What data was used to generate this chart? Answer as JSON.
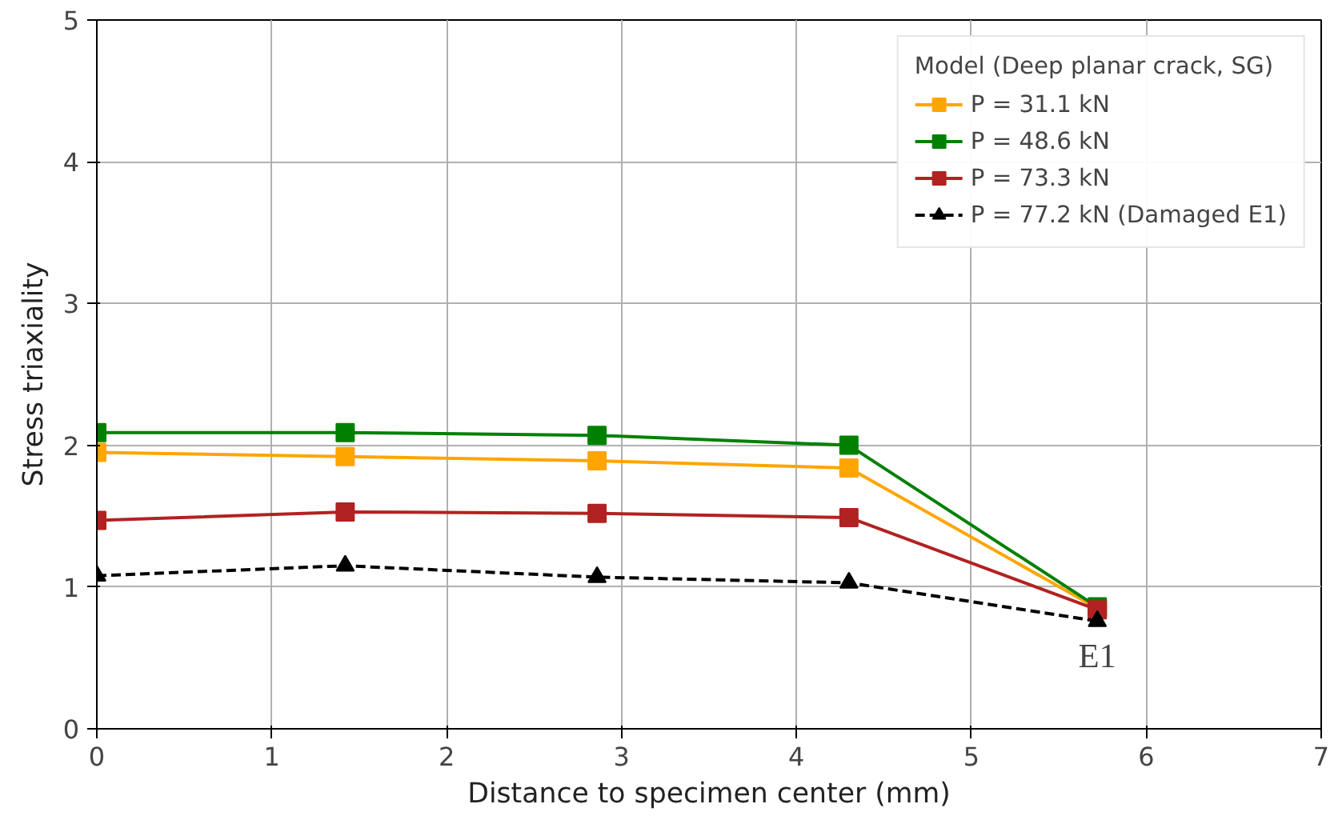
{
  "chart_data": {
    "type": "line",
    "xlabel": "Distance to specimen center (mm)",
    "ylabel": "Stress triaxiality",
    "legend_title": "Model (Deep planar crack, SG)",
    "legend": "top right",
    "grid": true,
    "x": [
      0,
      1.42,
      2.86,
      4.3,
      5.72
    ],
    "xlim": [
      0,
      7
    ],
    "xticks": [
      0,
      1,
      2,
      3,
      4,
      5,
      6,
      7
    ],
    "ylim": [
      0,
      5
    ],
    "yticks": [
      0,
      1,
      2,
      3,
      4,
      5
    ],
    "series": [
      {
        "name": "P = 31.1 kN",
        "color": "#ffa500",
        "values": [
          1.95,
          1.92,
          1.89,
          1.84,
          0.85
        ],
        "marker": "square",
        "line_style": "solid"
      },
      {
        "name": "P = 48.6 kN",
        "color": "#008000",
        "values": [
          2.09,
          2.09,
          2.07,
          2.0,
          0.86
        ],
        "marker": "square",
        "line_style": "solid"
      },
      {
        "name": "P = 73.3 kN",
        "color": "#b22222",
        "values": [
          1.47,
          1.53,
          1.52,
          1.49,
          0.84
        ],
        "marker": "square",
        "line_style": "solid"
      },
      {
        "name": "P = 77.2 kN (Damaged E1)",
        "color": "#000000",
        "values": [
          1.08,
          1.15,
          1.07,
          1.03,
          0.76
        ],
        "marker": "triangle",
        "line_style": "dashed"
      }
    ],
    "annotations": [
      {
        "text": "E1",
        "x": 5.72,
        "y": 0.76
      }
    ]
  }
}
